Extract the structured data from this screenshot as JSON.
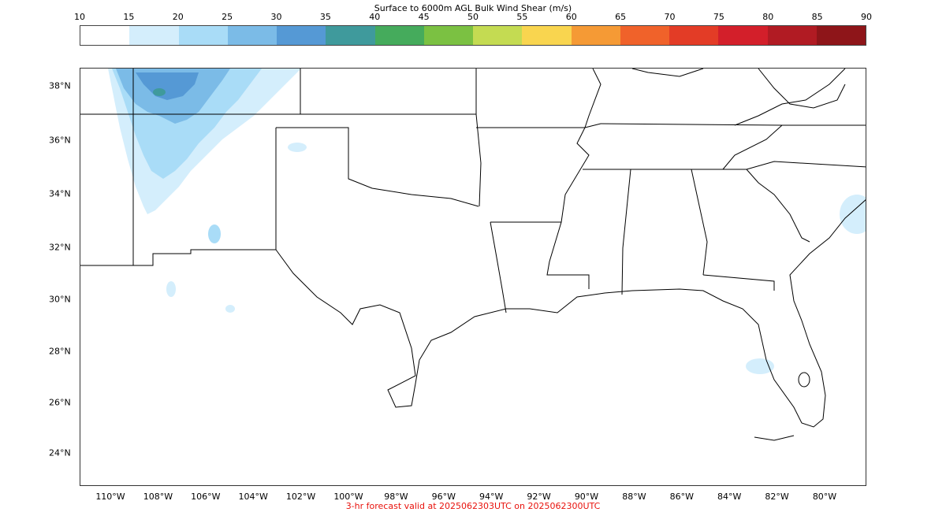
{
  "title": "Surface to 6000m AGL Bulk Wind Shear (m/s)",
  "colorbar": {
    "ticks": [
      "10",
      "15",
      "20",
      "25",
      "30",
      "35",
      "40",
      "45",
      "50",
      "55",
      "60",
      "65",
      "70",
      "75",
      "80",
      "85",
      "90"
    ],
    "colors": [
      "#ffffff",
      "#d4eefc",
      "#a9dcf7",
      "#7bbbe7",
      "#5599d5",
      "#3f9a9c",
      "#45ab5c",
      "#7bc142",
      "#c4db52",
      "#f9d54f",
      "#f59a35",
      "#f0622a",
      "#e33c26",
      "#d31f2a",
      "#b11b23",
      "#8e1519"
    ]
  },
  "map": {
    "lat_labels": [
      "38°N",
      "36°N",
      "34°N",
      "32°N",
      "30°N",
      "28°N",
      "26°N",
      "24°N"
    ],
    "lon_labels": [
      "110°W",
      "108°W",
      "106°W",
      "104°W",
      "102°W",
      "100°W",
      "98°W",
      "96°W",
      "94°W",
      "92°W",
      "90°W",
      "88°W",
      "86°W",
      "84°W",
      "82°W",
      "80°W"
    ],
    "shear_field": "light blue 15-35 m/s values over Colorado/New Mexico, weak patches elsewhere"
  },
  "footer": {
    "valid_text": "3-hr forecast valid at 2025062303UTC on 2025062300UTC"
  }
}
